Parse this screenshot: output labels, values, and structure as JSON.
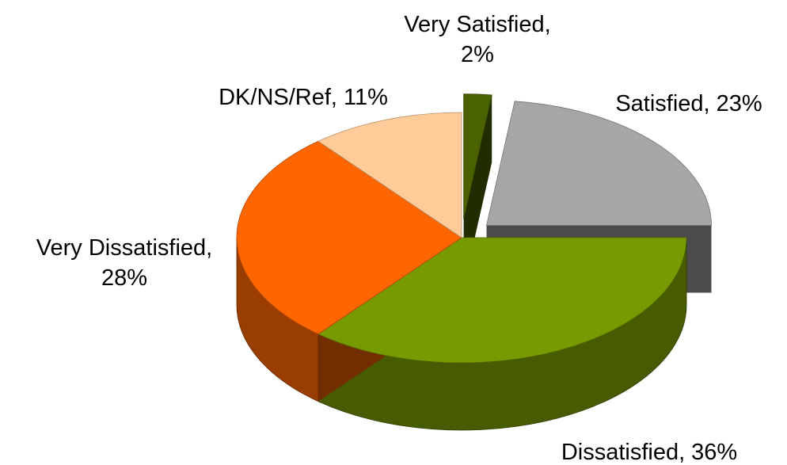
{
  "chart_data": {
    "type": "pie",
    "categories": [
      "Very Satisfied,",
      "Satisfied,",
      "Dissatisfied,",
      "Very Dissatisfied,",
      "DK/NS/Ref,"
    ],
    "values": [
      2,
      23,
      36,
      28,
      11
    ],
    "value_labels": [
      "2%",
      "23%",
      "36%",
      "28%",
      "11%"
    ],
    "colors": [
      "#4a6300",
      "#a6a6a6",
      "#779a00",
      "#ff6600",
      "#ffcc99"
    ],
    "explode": [
      true,
      true,
      false,
      false,
      false
    ],
    "three_d": true
  }
}
